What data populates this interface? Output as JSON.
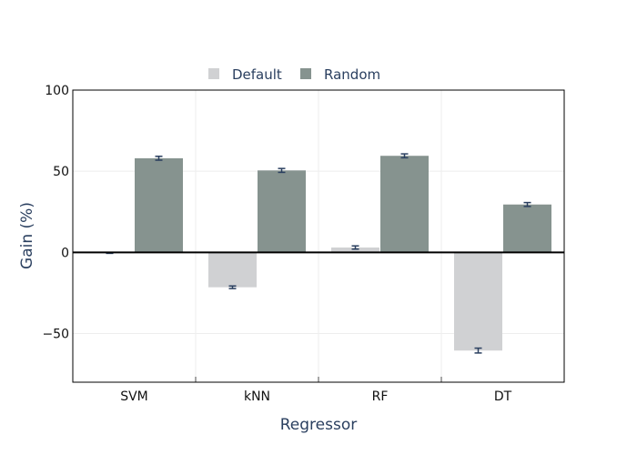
{
  "chart_data": {
    "type": "bar",
    "xlabel": "Regressor",
    "ylabel": "Gain (%)",
    "categories": [
      "SVM",
      "kNN",
      "RF",
      "DT"
    ],
    "ylim": [
      -80,
      100
    ],
    "yticks": [
      -50,
      0,
      50,
      100
    ],
    "yticklabels": [
      "−50",
      "0",
      "50",
      "100"
    ],
    "grid": true,
    "legend_position": "top-center",
    "series": [
      {
        "name": "Default",
        "color": "#d0d1d3",
        "values": [
          -0.3,
          -21.5,
          3,
          -60.5
        ],
        "errors": [
          0.3,
          0.8,
          1.0,
          1.5
        ]
      },
      {
        "name": "Random",
        "color": "#86938f",
        "values": [
          58,
          50.5,
          59.5,
          29.5
        ],
        "errors": [
          1.2,
          1.2,
          1.2,
          1.2
        ]
      }
    ],
    "error_bar_color": "#2a3f5f"
  }
}
